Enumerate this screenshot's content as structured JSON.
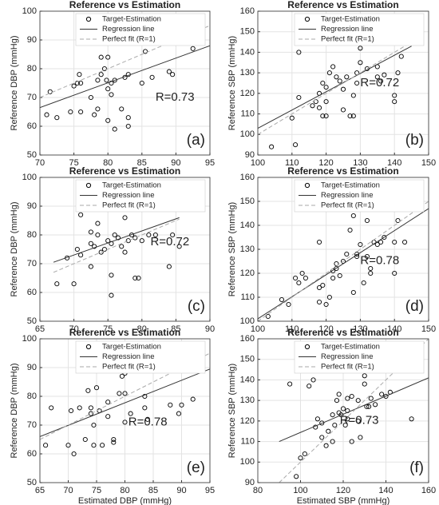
{
  "chart_data": [
    {
      "type": "scatter",
      "title": "Reference vs Estimation",
      "ylabel": "Reference DBP (mmHg)",
      "annotation": "R=0.73",
      "panel_label": "(a)",
      "xlim": [
        70,
        95
      ],
      "xticks": [
        70,
        75,
        80,
        85,
        90,
        95
      ],
      "ylim": [
        50,
        100
      ],
      "yticks": [
        50,
        60,
        70,
        80,
        90,
        100
      ],
      "grid": true,
      "legend": "upper right",
      "series": [
        {
          "name": "Target-Estimation",
          "color": "#000000",
          "x": [
            71.5,
            71,
            72.5,
            75,
            75.5,
            76,
            75.8,
            74.5,
            76,
            77.5,
            78,
            78.5,
            78.5,
            79,
            79,
            79.5,
            80,
            79.8,
            80,
            80.5,
            80.5,
            81,
            81,
            82,
            82.5,
            83,
            83,
            83,
            85,
            85.5,
            86.5,
            86.5,
            88.5,
            89,
            89.5,
            92.5,
            80
          ],
          "values": [
            72,
            64,
            63,
            74,
            75,
            75,
            78,
            65,
            65,
            70,
            64,
            66,
            76,
            78,
            84,
            80,
            84,
            76,
            73,
            75,
            71,
            76,
            59,
            66,
            77,
            78,
            60,
            63,
            75,
            86,
            92,
            77,
            91,
            79,
            78,
            87,
            62
          ]
        },
        {
          "name": "Regression line",
          "color": "#333333",
          "x": [
            70,
            95
          ],
          "values": [
            66.5,
            88
          ]
        },
        {
          "name": "Perfect fit (R=1)",
          "color": "#aaaaaa",
          "dashed": true,
          "x": [
            70,
            95
          ],
          "values": [
            70,
            95
          ]
        }
      ]
    },
    {
      "type": "scatter",
      "title": "Reference vs Estimation",
      "ylabel": "Reference SBP (mmHg)",
      "annotation": "R=0.72",
      "panel_label": "(b)",
      "xlim": [
        100,
        150
      ],
      "xticks": [
        100,
        110,
        120,
        130,
        140,
        150
      ],
      "ylim": [
        90,
        160
      ],
      "yticks": [
        90,
        100,
        110,
        120,
        130,
        140,
        150,
        160
      ],
      "grid": true,
      "legend": "upper right",
      "series": [
        {
          "name": "Target-Estimation",
          "color": "#000000",
          "x": [
            104,
            110,
            111,
            112,
            112,
            116,
            117,
            118,
            118,
            119,
            119,
            120,
            120,
            120,
            121,
            122,
            123,
            124,
            124,
            124,
            125,
            125,
            126,
            127,
            128,
            128,
            129,
            129,
            130,
            130,
            132,
            134,
            135,
            136,
            137,
            140,
            140,
            141,
            142,
            135
          ],
          "values": [
            94,
            108,
            95,
            118,
            140,
            114,
            116,
            113,
            120,
            109,
            125,
            109,
            116,
            123,
            130,
            133,
            128,
            126,
            145,
            148,
            112,
            122,
            128,
            109,
            109,
            119,
            125,
            130,
            142,
            135,
            132,
            154,
            133,
            126,
            129,
            116,
            119,
            130,
            138,
            128
          ]
        },
        {
          "name": "Regression line",
          "color": "#333333",
          "x": [
            100,
            145
          ],
          "values": [
            103,
            143
          ]
        },
        {
          "name": "Perfect fit (R=1)",
          "color": "#aaaaaa",
          "dashed": true,
          "x": [
            100,
            145
          ],
          "values": [
            100,
            145
          ]
        }
      ]
    },
    {
      "type": "scatter",
      "title": "Reference vs Estimation",
      "ylabel": "Reference DBP (mmHg)",
      "annotation": "R=0.72",
      "panel_label": "(c)",
      "xlim": [
        65,
        90
      ],
      "xticks": [
        65,
        70,
        75,
        80,
        85,
        90
      ],
      "ylim": [
        50,
        100
      ],
      "yticks": [
        50,
        60,
        70,
        80,
        90,
        100
      ],
      "grid": true,
      "legend": "upper right",
      "series": [
        {
          "name": "Target-Estimation",
          "color": "#000000",
          "x": [
            67.5,
            69,
            70,
            70.5,
            71,
            71,
            72.5,
            72.5,
            72.5,
            73,
            73.5,
            73.5,
            74,
            74.5,
            75,
            75.5,
            75.5,
            75.5,
            76,
            76.5,
            77,
            77.5,
            77.5,
            78,
            78.5,
            79,
            79.5,
            79,
            80,
            80.5,
            80.5,
            81,
            81,
            82,
            84,
            84.5,
            85,
            85.5,
            85.5
          ],
          "values": [
            63,
            72,
            63,
            75,
            87,
            73,
            81,
            69,
            77,
            76,
            84,
            80,
            74,
            75,
            78,
            77,
            66,
            59,
            80,
            79,
            76,
            86,
            74,
            78,
            80,
            79,
            65,
            65,
            78,
            92,
            97,
            80,
            92,
            80,
            69,
            80,
            89,
            91,
            76
          ]
        },
        {
          "name": "Regression line",
          "color": "#333333",
          "x": [
            67,
            85.5
          ],
          "values": [
            70.5,
            86
          ]
        },
        {
          "name": "Perfect fit (R=1)",
          "color": "#aaaaaa",
          "dashed": true,
          "x": [
            67,
            85.5
          ],
          "values": [
            67,
            85.5
          ]
        }
      ]
    },
    {
      "type": "scatter",
      "title": "Reference vs Estimation",
      "ylabel": "Reference SBP (mmHg)",
      "annotation": "R=0.78",
      "panel_label": "(d)",
      "xlim": [
        100,
        150
      ],
      "xticks": [
        100,
        110,
        120,
        130,
        140,
        150
      ],
      "ylim": [
        100,
        160
      ],
      "yticks": [
        100,
        110,
        120,
        130,
        140,
        150,
        160
      ],
      "grid": true,
      "legend": "upper right",
      "series": [
        {
          "name": "Target-Estimation",
          "color": "#000000",
          "x": [
            103,
            107,
            109,
            111,
            112,
            113,
            114,
            118,
            118,
            118,
            119,
            120,
            121,
            122,
            122,
            123,
            123,
            124,
            125,
            126,
            127,
            128,
            128,
            129,
            129,
            130,
            131,
            132,
            132,
            133,
            133,
            134,
            135,
            136,
            137,
            140,
            141,
            145,
            146,
            143,
            140
          ],
          "values": [
            102,
            109,
            107,
            118,
            116,
            120,
            118,
            108,
            114,
            133,
            115,
            107,
            110,
            118,
            121,
            122,
            124,
            119,
            125,
            128,
            138,
            112,
            144,
            127,
            128,
            132,
            116,
            127,
            142,
            122,
            120,
            133,
            132,
            133,
            135,
            133,
            142,
            158,
            154,
            133,
            120
          ]
        },
        {
          "name": "Regression line",
          "color": "#333333",
          "x": [
            100,
            150
          ],
          "values": [
            101,
            147
          ]
        },
        {
          "name": "Perfect fit (R=1)",
          "color": "#aaaaaa",
          "dashed": true,
          "x": [
            100,
            150
          ],
          "values": [
            100,
            150
          ]
        }
      ]
    },
    {
      "type": "scatter",
      "title": "Reference vs Estimation",
      "xlabel": "Estimated DBP (mmHg)",
      "ylabel": "Reference DBP (mmHg)",
      "annotation": "R=0.78",
      "panel_label": "(e)",
      "xlim": [
        65,
        95
      ],
      "xticks": [
        65,
        70,
        75,
        80,
        85,
        90,
        95
      ],
      "ylim": [
        50,
        100
      ],
      "yticks": [
        50,
        60,
        70,
        80,
        90,
        100
      ],
      "grid": true,
      "legend": "upper right",
      "series": [
        {
          "name": "Target-Estimation",
          "color": "#000000",
          "x": [
            66,
            67,
            70,
            70.5,
            71,
            72,
            73,
            73.5,
            74,
            74,
            74.5,
            74.5,
            75,
            75.5,
            76,
            77,
            77,
            78,
            78,
            79,
            79.5,
            80,
            80,
            80.5,
            81,
            81,
            83.5,
            83.5,
            84,
            87,
            87,
            87.5,
            88,
            89.5,
            90,
            92,
            80
          ],
          "values": [
            63,
            76,
            63,
            75,
            60,
            76,
            65,
            82,
            74,
            76,
            63,
            70,
            83,
            75,
            63,
            78,
            73,
            64,
            65,
            81,
            87,
            81,
            71,
            92,
            97,
            74,
            80,
            76,
            72,
            89,
            92,
            94,
            77,
            74,
            77,
            79,
            88
          ]
        },
        {
          "name": "Regression line",
          "color": "#333333",
          "x": [
            65,
            95
          ],
          "values": [
            66,
            89.5
          ]
        },
        {
          "name": "Perfect fit (R=1)",
          "color": "#aaaaaa",
          "dashed": true,
          "x": [
            65,
            95
          ],
          "values": [
            65,
            95
          ]
        }
      ]
    },
    {
      "type": "scatter",
      "title": "Reference vs Estimation",
      "xlabel": "Estimated SBP (mmHg)",
      "ylabel": "Reference SBP (mmHg)",
      "annotation": "R=0.73",
      "panel_label": "(f)",
      "xlim": [
        80,
        160
      ],
      "xticks": [
        80,
        100,
        120,
        140,
        160
      ],
      "ylim": [
        90,
        160
      ],
      "yticks": [
        90,
        100,
        110,
        120,
        130,
        140,
        150,
        160
      ],
      "grid": true,
      "legend": "upper right",
      "series": [
        {
          "name": "Target-Estimation",
          "color": "#000000",
          "x": [
            95,
            98,
            100,
            102,
            104,
            106,
            107,
            108,
            110,
            110,
            112,
            113,
            115,
            115,
            116,
            117,
            118,
            118,
            119,
            120,
            121,
            122,
            122,
            122,
            124,
            124,
            127,
            127,
            128,
            130,
            130,
            131,
            132,
            133,
            135,
            138,
            140,
            142,
            150,
            152
          ],
          "values": [
            138,
            93,
            102,
            104,
            137,
            140,
            117,
            121,
            112,
            119,
            108,
            115,
            110,
            123,
            118,
            130,
            133,
            124,
            123,
            126,
            118,
            131,
            121,
            125,
            110,
            132,
            120,
            130,
            112,
            142,
            138,
            127,
            127,
            131,
            128,
            133,
            132,
            134,
            154,
            121
          ]
        },
        {
          "name": "Regression line",
          "color": "#333333",
          "x": [
            90,
            160
          ],
          "values": [
            110,
            141
          ]
        },
        {
          "name": "Perfect fit (R=1)",
          "color": "#aaaaaa",
          "dashed": true,
          "x": [
            90,
            160
          ],
          "values": [
            90,
            160
          ]
        }
      ]
    }
  ]
}
